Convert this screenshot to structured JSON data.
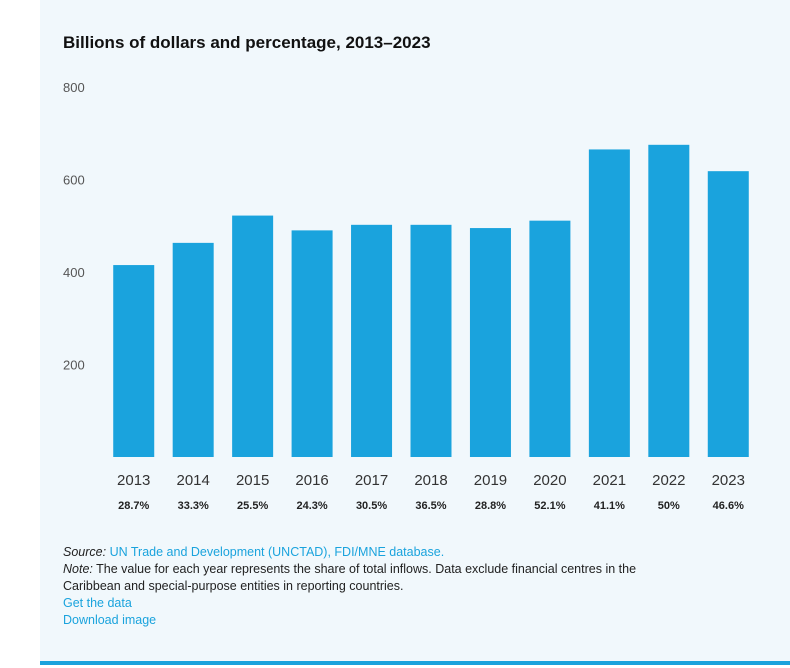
{
  "title": "Billions of dollars and percentage, 2013–2023",
  "chart_data": {
    "type": "bar",
    "title": "Billions of dollars and percentage, 2013–2023",
    "categories": [
      "2013",
      "2014",
      "2015",
      "2016",
      "2017",
      "2018",
      "2019",
      "2020",
      "2021",
      "2022",
      "2023"
    ],
    "values": [
      415,
      463,
      522,
      490,
      502,
      502,
      495,
      511,
      665,
      675,
      618
    ],
    "data_labels": [
      "28.7%",
      "33.3%",
      "25.5%",
      "24.3%",
      "30.5%",
      "36.5%",
      "28.8%",
      "52.1%",
      "41.1%",
      "50%",
      "46.6%"
    ],
    "y_ticks": [
      "200",
      "400",
      "600",
      "800"
    ],
    "ylim": [
      0,
      800
    ],
    "bar_color": "#1aa3dd",
    "grid": false
  },
  "source": {
    "label": "Source:",
    "text": "UN Trade and Development (UNCTAD), FDI/MNE database."
  },
  "note": {
    "label": "Note:",
    "text_line1": "The value for each year represents the share of total inflows. Data exclude financial centres in the",
    "text_line2": "Caribbean and special-purpose entities in reporting countries."
  },
  "links": {
    "get_data": "Get the data",
    "download_image": "Download image"
  }
}
